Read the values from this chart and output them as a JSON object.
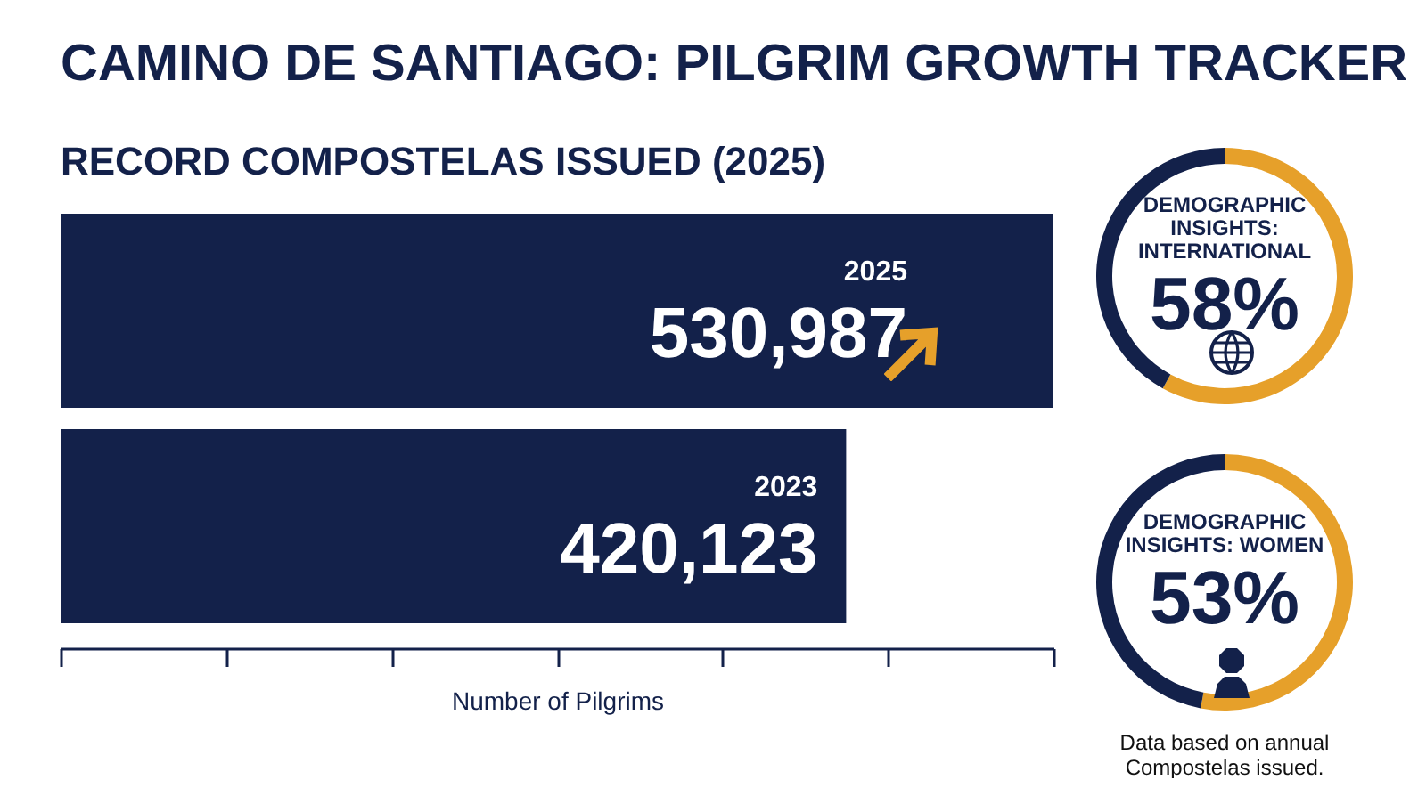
{
  "chart_data": [
    {
      "type": "bar",
      "orientation": "horizontal",
      "title": "CAMINO DE SANTIAGO: PILGRIM GROWTH TRACKER",
      "subtitle": "RECORD COMPOSTELAS ISSUED (2025)",
      "xlabel": "Number of Pilgrims",
      "categories": [
        "2025",
        "2023"
      ],
      "values": [
        530987,
        420123
      ],
      "color": "#13214a",
      "value_labels": [
        "530,987",
        "420,123"
      ],
      "xlim": [
        0,
        531000
      ],
      "xticks": [
        {
          "value": 0,
          "label": null
        },
        {
          "value": 88500,
          "label": null
        },
        {
          "value": 177000,
          "label": null
        },
        {
          "value": 265500,
          "label": null
        },
        {
          "value": 354000,
          "label": null
        },
        {
          "value": 442500,
          "label": null
        },
        {
          "value": 531000,
          "label": null
        }
      ],
      "grid": false
    },
    {
      "type": "donut",
      "title": "DEMOGRAPHIC INSIGHTS: INTERNATIONAL",
      "categories": [
        null,
        null
      ],
      "values": [
        58,
        42
      ],
      "colors": [
        "#e6a02a",
        "#13214a"
      ],
      "value_labels": [
        "58%",
        null
      ]
    },
    {
      "type": "donut",
      "title": "DEMOGRAPHIC INSIGHTS: WOMEN",
      "categories": [
        null,
        null
      ],
      "values": [
        53,
        47
      ],
      "colors": [
        "#e6a02a",
        "#13214a"
      ],
      "value_labels": [
        "53%",
        null
      ],
      "annotations": [
        "Data based on annual Compostelas issued."
      ]
    }
  ]
}
